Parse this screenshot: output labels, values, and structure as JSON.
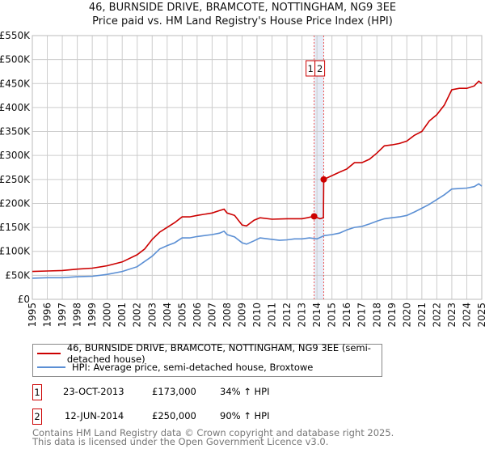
{
  "title_line1": "46, BURNSIDE DRIVE, BRAMCOTE, NOTTINGHAM, NG9 3EE",
  "title_line2": "Price paid vs. HM Land Registry's House Price Index (HPI)",
  "chart_data": {
    "type": "line",
    "ylim": [
      0,
      550000
    ],
    "xlim": [
      1995,
      2025
    ],
    "y_ticks": [
      0,
      50000,
      100000,
      150000,
      200000,
      250000,
      300000,
      350000,
      400000,
      450000,
      500000,
      550000
    ],
    "y_tick_labels": [
      "£0",
      "£50K",
      "£100K",
      "£150K",
      "£200K",
      "£250K",
      "£300K",
      "£350K",
      "£400K",
      "£450K",
      "£500K",
      "£550K"
    ],
    "x_tick_labels": [
      "1995",
      "1996",
      "1997",
      "1998",
      "1999",
      "2000",
      "2001",
      "2002",
      "2003",
      "2004",
      "2005",
      "2006",
      "2007",
      "2008",
      "2009",
      "2010",
      "2011",
      "2012",
      "2013",
      "2014",
      "2015",
      "2016",
      "2017",
      "2018",
      "2019",
      "2020",
      "2021",
      "2022",
      "2023",
      "2024",
      "2025"
    ],
    "grid": true,
    "series": [
      {
        "name": "46, BURNSIDE DRIVE, BRAMCOTE, NOTTINGHAM, NG9 3EE (semi-detached house)",
        "color": "#cc0000",
        "points": [
          [
            1995,
            58
          ],
          [
            1996,
            59
          ],
          [
            1997,
            60
          ],
          [
            1998,
            63
          ],
          [
            1999,
            65
          ],
          [
            2000,
            70
          ],
          [
            2001,
            78
          ],
          [
            2002,
            93
          ],
          [
            2002.5,
            105
          ],
          [
            2003,
            125
          ],
          [
            2003.5,
            140
          ],
          [
            2004,
            150
          ],
          [
            2004.5,
            160
          ],
          [
            2005,
            172
          ],
          [
            2005.5,
            172
          ],
          [
            2006,
            175
          ],
          [
            2007,
            180
          ],
          [
            2007.5,
            185
          ],
          [
            2007.8,
            188
          ],
          [
            2008,
            180
          ],
          [
            2008.5,
            175
          ],
          [
            2009,
            155
          ],
          [
            2009.3,
            153
          ],
          [
            2009.8,
            165
          ],
          [
            2010.2,
            170
          ],
          [
            2011,
            167
          ],
          [
            2012,
            168
          ],
          [
            2012.5,
            168
          ],
          [
            2013,
            168
          ],
          [
            2013.81,
            173
          ],
          [
            2014.2,
            168
          ],
          [
            2014.43,
            170
          ],
          [
            2014.45,
            250
          ],
          [
            2015,
            258
          ],
          [
            2015.5,
            265
          ],
          [
            2016,
            272
          ],
          [
            2016.5,
            285
          ],
          [
            2017,
            285
          ],
          [
            2017.5,
            292
          ],
          [
            2018,
            305
          ],
          [
            2018.5,
            320
          ],
          [
            2019,
            322
          ],
          [
            2019.5,
            325
          ],
          [
            2020,
            330
          ],
          [
            2020.5,
            342
          ],
          [
            2021,
            350
          ],
          [
            2021.5,
            372
          ],
          [
            2022,
            385
          ],
          [
            2022.5,
            405
          ],
          [
            2023,
            437
          ],
          [
            2023.5,
            440
          ],
          [
            2024,
            440
          ],
          [
            2024.5,
            445
          ],
          [
            2024.8,
            455
          ],
          [
            2025,
            450
          ]
        ]
      },
      {
        "name": "HPI: Average price, semi-detached house, Broxtowe",
        "color": "#5b8fd4",
        "points": [
          [
            1995,
            44
          ],
          [
            1996,
            45
          ],
          [
            1997,
            45
          ],
          [
            1998,
            47
          ],
          [
            1999,
            48
          ],
          [
            2000,
            52
          ],
          [
            2001,
            58
          ],
          [
            2002,
            68
          ],
          [
            2003,
            90
          ],
          [
            2003.5,
            105
          ],
          [
            2004,
            112
          ],
          [
            2004.5,
            118
          ],
          [
            2005,
            128
          ],
          [
            2005.5,
            128
          ],
          [
            2006,
            131
          ],
          [
            2007,
            135
          ],
          [
            2007.5,
            138
          ],
          [
            2007.8,
            142
          ],
          [
            2008,
            135
          ],
          [
            2008.5,
            130
          ],
          [
            2009,
            118
          ],
          [
            2009.3,
            115
          ],
          [
            2009.8,
            122
          ],
          [
            2010.2,
            128
          ],
          [
            2011,
            125
          ],
          [
            2011.5,
            123
          ],
          [
            2012,
            124
          ],
          [
            2012.5,
            126
          ],
          [
            2013,
            126
          ],
          [
            2013.5,
            128
          ],
          [
            2014,
            126
          ],
          [
            2014.5,
            133
          ],
          [
            2015,
            135
          ],
          [
            2015.5,
            138
          ],
          [
            2016,
            145
          ],
          [
            2016.5,
            150
          ],
          [
            2017,
            152
          ],
          [
            2017.5,
            157
          ],
          [
            2018,
            163
          ],
          [
            2018.5,
            168
          ],
          [
            2019,
            170
          ],
          [
            2019.5,
            172
          ],
          [
            2020,
            175
          ],
          [
            2020.5,
            182
          ],
          [
            2021,
            190
          ],
          [
            2021.5,
            198
          ],
          [
            2022,
            208
          ],
          [
            2022.5,
            218
          ],
          [
            2023,
            230
          ],
          [
            2023.5,
            231
          ],
          [
            2024,
            232
          ],
          [
            2024.5,
            235
          ],
          [
            2024.8,
            241
          ],
          [
            2025,
            236
          ]
        ]
      }
    ],
    "point_units": "thousand GBP",
    "sales": [
      {
        "label": "1",
        "x": 2013.81,
        "y": 173
      },
      {
        "label": "2",
        "x": 2014.45,
        "y": 250
      }
    ]
  },
  "legend": {
    "property": "46, BURNSIDE DRIVE, BRAMCOTE, NOTTINGHAM, NG9 3EE (semi-detached house)",
    "hpi": "HPI: Average price, semi-detached house, Broxtowe"
  },
  "sales_table": [
    {
      "num": "1",
      "date": "23-OCT-2013",
      "price": "£173,000",
      "hpi": "34% ↑ HPI"
    },
    {
      "num": "2",
      "date": "12-JUN-2014",
      "price": "£250,000",
      "hpi": "90% ↑ HPI"
    }
  ],
  "footer": {
    "line1": "Contains HM Land Registry data © Crown copyright and database right 2025.",
    "line2": "This data is licensed under the Open Government Licence v3.0."
  }
}
